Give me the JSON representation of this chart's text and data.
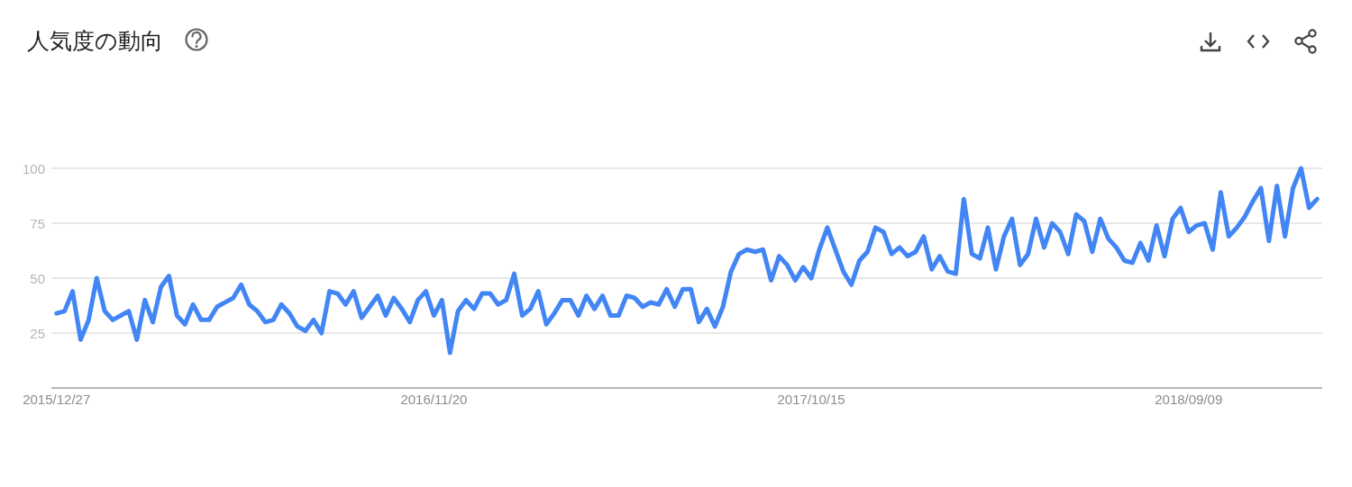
{
  "chart_data": {
    "type": "line",
    "title": "人気度の動向",
    "x": [
      "2015-12-27",
      "2016-01-03",
      "2016-01-10",
      "2016-01-17",
      "2016-01-24",
      "2016-01-31",
      "2016-02-07",
      "2016-02-14",
      "2016-02-21",
      "2016-02-28",
      "2016-03-06",
      "2016-03-13",
      "2016-03-20",
      "2016-03-27",
      "2016-04-03",
      "2016-04-10",
      "2016-04-17",
      "2016-04-24",
      "2016-05-01",
      "2016-05-08",
      "2016-05-15",
      "2016-05-22",
      "2016-05-29",
      "2016-06-05",
      "2016-06-12",
      "2016-06-19",
      "2016-06-26",
      "2016-07-03",
      "2016-07-10",
      "2016-07-17",
      "2016-07-24",
      "2016-07-31",
      "2016-08-07",
      "2016-08-14",
      "2016-08-21",
      "2016-08-28",
      "2016-09-04",
      "2016-09-11",
      "2016-09-18",
      "2016-09-25",
      "2016-10-02",
      "2016-10-09",
      "2016-10-16",
      "2016-10-23",
      "2016-10-30",
      "2016-11-06",
      "2016-11-13",
      "2016-11-20",
      "2016-11-27",
      "2016-12-04",
      "2016-12-11",
      "2016-12-18",
      "2016-12-25",
      "2017-01-01",
      "2017-01-08",
      "2017-01-15",
      "2017-01-22",
      "2017-01-29",
      "2017-02-05",
      "2017-02-12",
      "2017-02-19",
      "2017-02-26",
      "2017-03-05",
      "2017-03-12",
      "2017-03-19",
      "2017-03-26",
      "2017-04-02",
      "2017-04-09",
      "2017-04-16",
      "2017-04-23",
      "2017-04-30",
      "2017-05-07",
      "2017-05-14",
      "2017-05-21",
      "2017-05-28",
      "2017-06-04",
      "2017-06-11",
      "2017-06-18",
      "2017-06-25",
      "2017-07-02",
      "2017-07-09",
      "2017-07-16",
      "2017-07-23",
      "2017-07-30",
      "2017-08-06",
      "2017-08-13",
      "2017-08-20",
      "2017-08-27",
      "2017-09-03",
      "2017-09-10",
      "2017-09-17",
      "2017-09-24",
      "2017-10-01",
      "2017-10-08",
      "2017-10-15",
      "2017-10-22",
      "2017-10-29",
      "2017-11-05",
      "2017-11-12",
      "2017-11-19",
      "2017-11-26",
      "2017-12-03",
      "2017-12-10",
      "2017-12-17",
      "2017-12-24",
      "2017-12-31",
      "2018-01-07",
      "2018-01-14",
      "2018-01-21",
      "2018-01-28",
      "2018-02-04",
      "2018-02-11",
      "2018-02-18",
      "2018-02-25",
      "2018-03-04",
      "2018-03-11",
      "2018-03-18",
      "2018-03-25",
      "2018-04-01",
      "2018-04-08",
      "2018-04-15",
      "2018-04-22",
      "2018-04-29",
      "2018-05-06",
      "2018-05-13",
      "2018-05-20",
      "2018-05-27",
      "2018-06-03",
      "2018-06-10",
      "2018-06-17",
      "2018-06-24",
      "2018-07-01",
      "2018-07-08",
      "2018-07-15",
      "2018-07-22",
      "2018-07-29",
      "2018-08-05",
      "2018-08-12",
      "2018-08-19",
      "2018-08-26",
      "2018-09-02",
      "2018-09-09",
      "2018-09-16",
      "2018-09-23",
      "2018-09-30",
      "2018-10-07",
      "2018-10-14",
      "2018-10-21",
      "2018-10-28",
      "2018-11-04",
      "2018-11-11",
      "2018-11-18",
      "2018-11-25",
      "2018-12-02",
      "2018-12-09",
      "2018-12-16",
      "2018-12-23",
      "2018-12-30"
    ],
    "series": [
      {
        "color": "#4285f4",
        "values": [
          34,
          35,
          44,
          22,
          31,
          50,
          35,
          31,
          33,
          35,
          22,
          40,
          30,
          46,
          51,
          33,
          29,
          38,
          31,
          31,
          37,
          39,
          41,
          47,
          38,
          35,
          30,
          31,
          38,
          34,
          28,
          26,
          31,
          25,
          44,
          43,
          38,
          44,
          32,
          37,
          42,
          33,
          41,
          36,
          30,
          40,
          44,
          33,
          40,
          16,
          35,
          40,
          36,
          43,
          43,
          38,
          40,
          52,
          33,
          36,
          44,
          29,
          34,
          40,
          40,
          33,
          42,
          36,
          42,
          33,
          33,
          42,
          41,
          37,
          39,
          38,
          45,
          37,
          45,
          45,
          30,
          36,
          28,
          37,
          53,
          61,
          63,
          62,
          63,
          49,
          60,
          56,
          49,
          55,
          50,
          63,
          73,
          63,
          53,
          47,
          58,
          62,
          73,
          71,
          61,
          64,
          60,
          62,
          69,
          54,
          60,
          53,
          52,
          86,
          61,
          59,
          73,
          54,
          69,
          77,
          56,
          61,
          77,
          64,
          75,
          71,
          61,
          79,
          76,
          62,
          77,
          68,
          64,
          58,
          57,
          66,
          58,
          74,
          60,
          77,
          82,
          71,
          74,
          75,
          63,
          89,
          69,
          73,
          78,
          85,
          91,
          67,
          92,
          69,
          91,
          100,
          82,
          86
        ]
      }
    ],
    "xlim": [
      "2015-12-22T12:00",
      "2019-01-03T12:00"
    ],
    "xticks": [
      {
        "value": "2015-12-27",
        "label": "2015/12/27"
      },
      {
        "value": "2016-11-20",
        "label": "2016/11/20"
      },
      {
        "value": "2017-10-15",
        "label": "2017/10/15"
      },
      {
        "value": "2018-09-09",
        "label": "2018/09/09"
      }
    ],
    "ylim": [
      0,
      100
    ],
    "yticks": [
      25,
      50,
      75,
      100
    ],
    "grid": "y",
    "line_style": "solid"
  }
}
